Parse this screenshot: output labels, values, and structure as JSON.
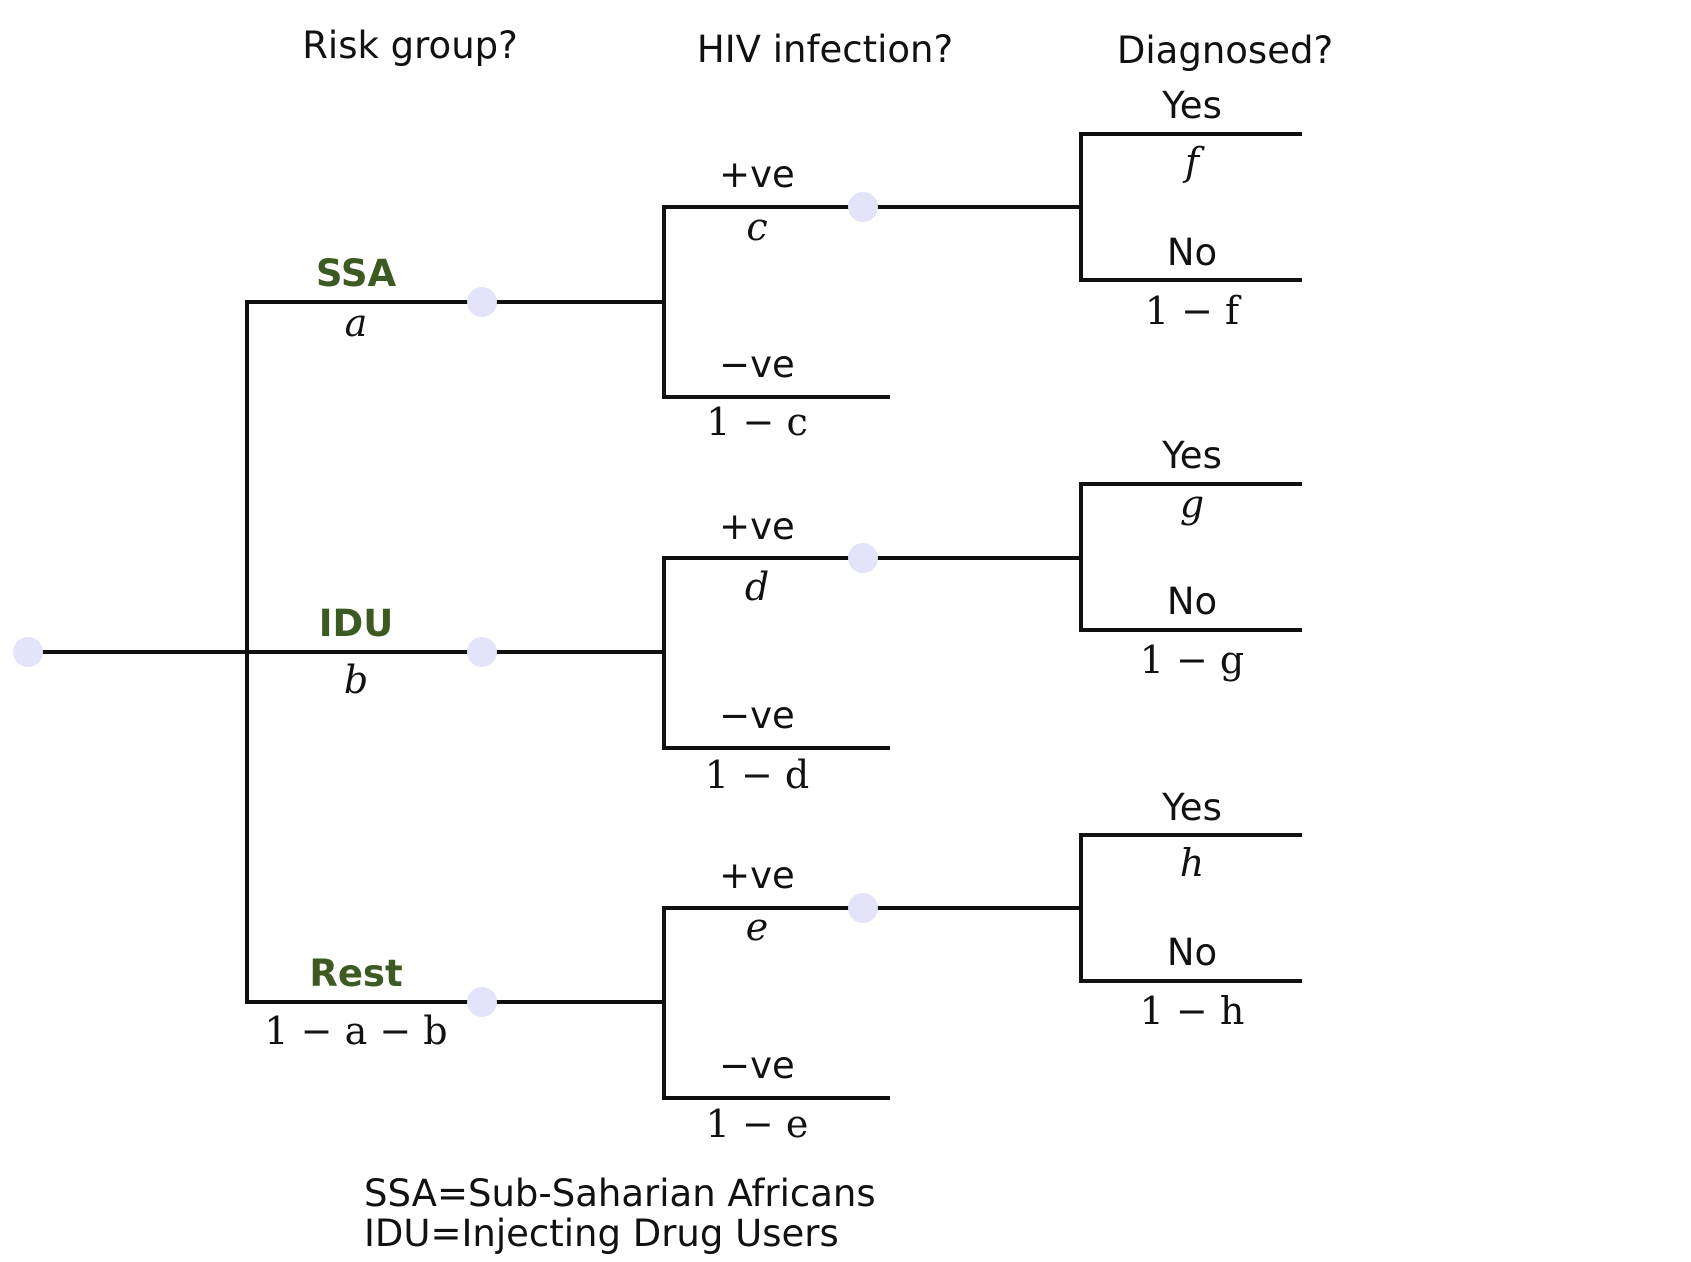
{
  "headers": {
    "risk_group": "Risk group?",
    "hiv_infection": "HIV infection?",
    "diagnosed": "Diagnosed?"
  },
  "colors": {
    "group_label": "#3d5a22",
    "chance_node": "#e3e3fa",
    "edge": "#111111"
  },
  "groups": [
    {
      "label": "SSA",
      "prob": "a",
      "infection": {
        "pos_label": "+ve",
        "pos_prob": "c",
        "neg_label": "−ve",
        "neg_prob": "1 − c",
        "diagnosis": {
          "yes_label": "Yes",
          "yes_prob": "f",
          "no_label": "No",
          "no_prob": "1 − f"
        }
      }
    },
    {
      "label": "IDU",
      "prob": "b",
      "infection": {
        "pos_label": "+ve",
        "pos_prob": "d",
        "neg_label": "−ve",
        "neg_prob": "1 − d",
        "diagnosis": {
          "yes_label": "Yes",
          "yes_prob": "g",
          "no_label": "No",
          "no_prob": "1 − g"
        }
      }
    },
    {
      "label": "Rest",
      "prob": "1 − a − b",
      "infection": {
        "pos_label": "+ve",
        "pos_prob": "e",
        "neg_label": "−ve",
        "neg_prob": "1 − e",
        "diagnosis": {
          "yes_label": "Yes",
          "yes_prob": "h",
          "no_label": "No",
          "no_prob": "1 − h"
        }
      }
    }
  ],
  "legend": {
    "line1": "SSA=Sub-Saharian Africans",
    "line2": "IDU=Injecting Drug Users"
  }
}
